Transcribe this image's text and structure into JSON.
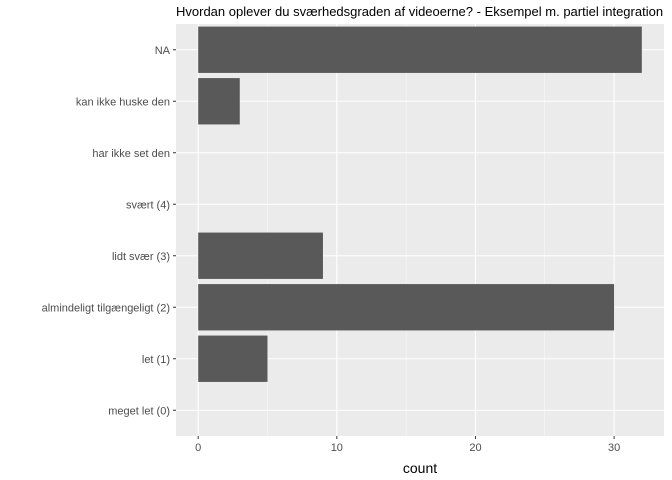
{
  "chart_data": {
    "type": "bar",
    "orientation": "horizontal",
    "title": "Hvordan oplever du sværhedsgraden af videoerne? - Eksempel m. partiel integration",
    "xlabel": "count",
    "ylabel": "",
    "categories": [
      "NA",
      "kan ikke huske den",
      "har ikke set den",
      "svært (4)",
      "lidt svær (3)",
      "almindeligt tilgængeligt (2)",
      "let (1)",
      "meget let (0)"
    ],
    "values": [
      32,
      3,
      0,
      0,
      9,
      30,
      5,
      0
    ],
    "xlim": [
      -1.6,
      33.6
    ],
    "xticks": [
      0,
      10,
      20,
      30
    ],
    "grid": true,
    "legend": "none",
    "colors": {
      "panel": "#ebebeb",
      "grid_major": "#ffffff",
      "bar": "#595959"
    }
  }
}
